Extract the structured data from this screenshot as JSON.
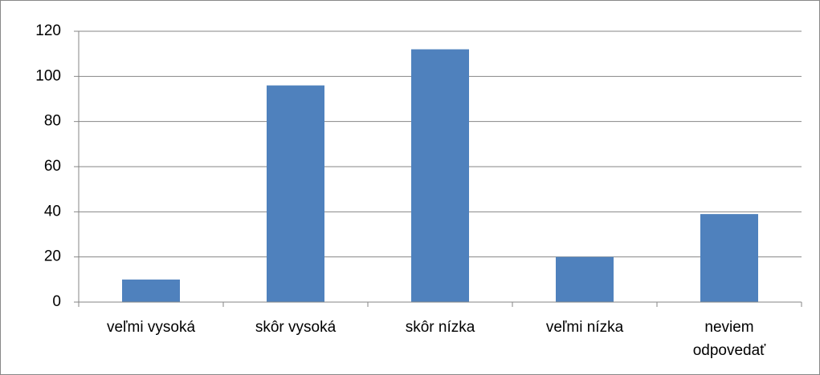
{
  "chart_data": {
    "type": "bar",
    "categories": [
      "veľmi vysoká",
      "skôr vysoká",
      "skôr nízka",
      "veľmi nízka",
      "neviem odpovedať"
    ],
    "values": [
      10,
      96,
      112,
      20,
      39
    ],
    "color": "#4f81bd",
    "ylim": [
      0,
      120
    ],
    "yticks": [
      0,
      20,
      40,
      60,
      80,
      100,
      120
    ],
    "grid": true
  }
}
